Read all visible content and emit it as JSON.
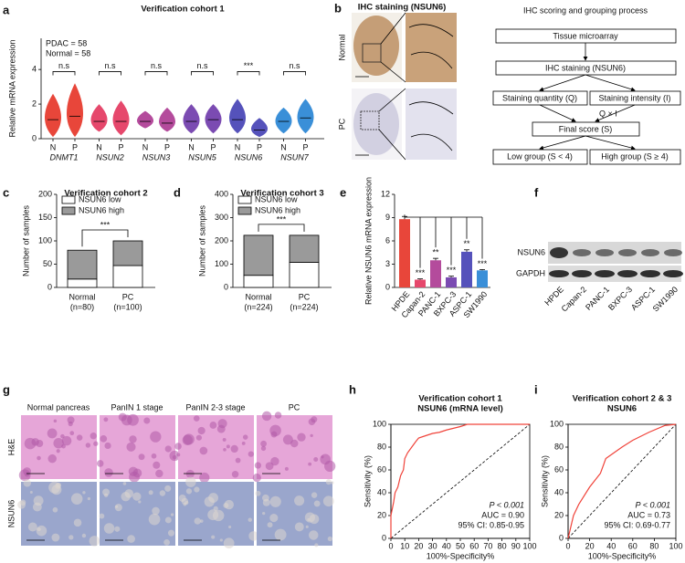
{
  "panel_letters": [
    "a",
    "b",
    "c",
    "d",
    "e",
    "f",
    "g",
    "h",
    "i"
  ],
  "chart_data": [
    {
      "type": "violin",
      "title": "Verification cohort 1",
      "ylabel": "Relative mRNA expression",
      "annotations": [
        "PDAC = 58",
        "Normal = 58"
      ],
      "categories": [
        "DNMT1",
        "NSUN2",
        "NSUN3",
        "NSUN5",
        "NSUN6",
        "NSUN7"
      ],
      "colors": [
        "#e8463a",
        "#e6486c",
        "#b44b9c",
        "#7b4bb2",
        "#5552bb",
        "#3a8fd8"
      ],
      "significance": [
        "n.s",
        "n.s",
        "n.s",
        "n.s",
        "***",
        "n.s"
      ],
      "series": [
        {
          "name": "N",
          "values": [
            1.1,
            1.0,
            1.0,
            1.0,
            1.1,
            1.0
          ],
          "min": [
            0.1,
            0.4,
            0.6,
            0.3,
            0.3,
            0.3
          ],
          "max": [
            2.6,
            2.0,
            1.6,
            2.0,
            2.3,
            1.8
          ]
        },
        {
          "name": "P",
          "values": [
            1.3,
            1.0,
            0.9,
            1.1,
            0.5,
            1.2
          ],
          "min": [
            0.1,
            0.2,
            0.4,
            0.3,
            0.1,
            0.3
          ],
          "max": [
            3.2,
            2.2,
            1.8,
            2.0,
            1.2,
            2.3
          ]
        }
      ],
      "ylim": [
        0,
        5.8
      ],
      "yticks": [
        0,
        2,
        4
      ]
    },
    {
      "type": "stacked_bar",
      "title": "Verification cohort 2",
      "ylabel": "Number of samples",
      "categories": [
        "Normal",
        "PC"
      ],
      "category_counts": [
        "(n=80)",
        "(n=100)"
      ],
      "series": [
        {
          "name": "NSUN6 low",
          "color": "#ffffff",
          "values": [
            18,
            47
          ]
        },
        {
          "name": "NSUN6 high",
          "color": "#9a9a9a",
          "values": [
            62,
            53
          ]
        }
      ],
      "significance": "***",
      "ylim": [
        0,
        200
      ],
      "yticks": [
        0,
        50,
        100,
        150,
        200
      ]
    },
    {
      "type": "stacked_bar",
      "title": "Verification cohort 3",
      "ylabel": "Number of samples",
      "categories": [
        "Normal",
        "PC"
      ],
      "category_counts": [
        "(n=224)",
        "(n=224)"
      ],
      "series": [
        {
          "name": "NSUN6 low",
          "color": "#ffffff",
          "values": [
            52,
            108
          ]
        },
        {
          "name": "NSUN6 high",
          "color": "#9a9a9a",
          "values": [
            172,
            116
          ]
        }
      ],
      "significance": "***",
      "ylim": [
        0,
        400
      ],
      "yticks": [
        0,
        100,
        200,
        300,
        400
      ]
    },
    {
      "type": "bar",
      "ylabel": "Relative NSUN6 mRNA expression",
      "categories": [
        "HPDE",
        "Capan-2",
        "PANC-1",
        "BXPC-3",
        "ASPC-1",
        "SW1990"
      ],
      "values": [
        8.8,
        1.0,
        3.5,
        1.3,
        4.6,
        2.2
      ],
      "errors": [
        0.35,
        0.1,
        0.25,
        0.15,
        0.25,
        0.1
      ],
      "colors": [
        "#e8463a",
        "#e6486c",
        "#b44b9c",
        "#7b4bb2",
        "#5552bb",
        "#3a8fd8"
      ],
      "significance": [
        "***",
        "**",
        "***",
        "**",
        "***"
      ],
      "ylim": [
        0,
        12
      ],
      "yticks": [
        0,
        3,
        6,
        9,
        12
      ]
    },
    {
      "type": "roc",
      "title": "Verification cohort 1",
      "subtitle": "NSUN6 (mRNA level)",
      "xlabel": "100%-Specificity%",
      "ylabel": "Sensitivity (%)",
      "color": "#f0433a",
      "x": [
        0,
        0,
        2,
        3,
        5,
        7,
        9,
        10,
        12,
        15,
        18,
        20,
        25,
        30,
        35,
        40,
        50,
        55,
        100
      ],
      "values": [
        0,
        20,
        32,
        40,
        45,
        55,
        60,
        70,
        75,
        80,
        85,
        88,
        90,
        92,
        93,
        95,
        98,
        100,
        100
      ],
      "annotations": [
        "P < 0.001",
        "AUC = 0.90",
        "95% CI: 0.85-0.95"
      ],
      "xlim": [
        0,
        100
      ],
      "ylim": [
        0,
        100
      ],
      "xticks": [
        0,
        10,
        20,
        30,
        40,
        50,
        60,
        70,
        80,
        90,
        100
      ],
      "yticks": [
        0,
        20,
        40,
        60,
        80,
        100
      ]
    },
    {
      "type": "roc",
      "title": "Verification cohort 2 & 3",
      "subtitle": "NSUN6",
      "xlabel": "100%-Specificity%",
      "ylabel": "Sensitivity (%)",
      "color": "#f0433a",
      "x": [
        0,
        2,
        5,
        10,
        20,
        30,
        35,
        50,
        60,
        75,
        90,
        100
      ],
      "values": [
        0,
        8,
        20,
        30,
        45,
        57,
        70,
        80,
        86,
        93,
        99,
        100
      ],
      "annotations": [
        "P < 0.001",
        "AUC = 0.73",
        "95% CI: 0.69-0.77"
      ],
      "xlim": [
        0,
        100
      ],
      "ylim": [
        0,
        100
      ],
      "xticks": [
        0,
        20,
        40,
        60,
        80,
        100
      ],
      "yticks": [
        0,
        20,
        40,
        60,
        80,
        100
      ]
    }
  ],
  "ihc": {
    "title": "IHC staining (NSUN6)",
    "rows": [
      "Normal",
      "PC"
    ]
  },
  "flowchart": {
    "title": "IHC scoring and grouping process",
    "nodes": [
      "Tissue microarray",
      "IHC staining (NSUN6)",
      "Staining quantity (Q)",
      "Staining intensity (I)",
      "Q × I",
      "Final score (S)",
      "Low group (S < 4)",
      "High group (S ≥ 4)"
    ]
  },
  "blot": {
    "bands": [
      "NSUN6",
      "GAPDH"
    ],
    "lanes": [
      "HPDE",
      "Capan-2",
      "PANC-1",
      "BXPC-3",
      "ASPC-1",
      "SW1990"
    ]
  },
  "histology": {
    "columns": [
      "Normal pancreas",
      "PanIN 1 stage",
      "PanIN 2-3 stage",
      "PC"
    ],
    "rows": [
      "H&E",
      "NSUN6"
    ]
  }
}
